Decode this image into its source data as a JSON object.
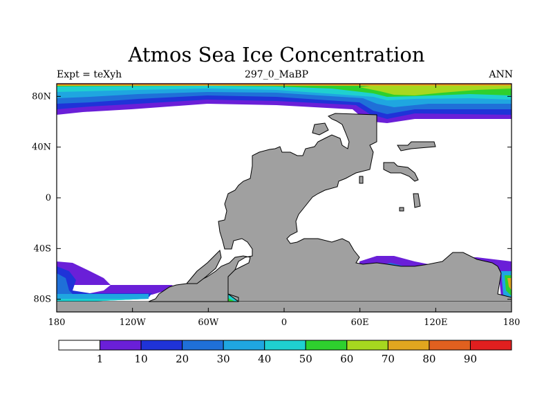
{
  "header": {
    "title": "Atmos Sea Ice Concentration",
    "left": "Expt = teXyh",
    "center": "297_0_MaBP",
    "right": "ANN"
  },
  "axes": {
    "lon_ticks": [
      {
        "lon": -180,
        "label": "180"
      },
      {
        "lon": -120,
        "label": "120W"
      },
      {
        "lon": -60,
        "label": "60W"
      },
      {
        "lon": 0,
        "label": "0"
      },
      {
        "lon": 60,
        "label": "60E"
      },
      {
        "lon": 120,
        "label": "120E"
      },
      {
        "lon": 180,
        "label": "180"
      }
    ],
    "lat_ticks": [
      {
        "lat": 80,
        "label": "80N"
      },
      {
        "lat": 40,
        "label": "40N"
      },
      {
        "lat": 0,
        "label": "0"
      },
      {
        "lat": -40,
        "label": "40S"
      },
      {
        "lat": -80,
        "label": "80S"
      }
    ],
    "lon_range": [
      -180,
      180
    ],
    "lat_range": [
      -90,
      90
    ]
  },
  "colorbar": {
    "colors": [
      "#ffffff",
      "#6a1fd8",
      "#1f33d8",
      "#1f70d8",
      "#1fa6e0",
      "#1fd0d0",
      "#2ed02e",
      "#a6d81f",
      "#e0a61f",
      "#e0601f",
      "#e01f1f"
    ],
    "labels": [
      "1",
      "10",
      "20",
      "30",
      "40",
      "50",
      "60",
      "70",
      "80",
      "90"
    ]
  },
  "chart_data": {
    "type": "heatmap",
    "variable": "Atmos Sea Ice Concentration",
    "levels": [
      1,
      10,
      20,
      30,
      40,
      50,
      60,
      70,
      80,
      90
    ],
    "land_color": "#a0a0a0",
    "xlim": [
      -180,
      180
    ],
    "ylim": [
      -90,
      90
    ]
  }
}
